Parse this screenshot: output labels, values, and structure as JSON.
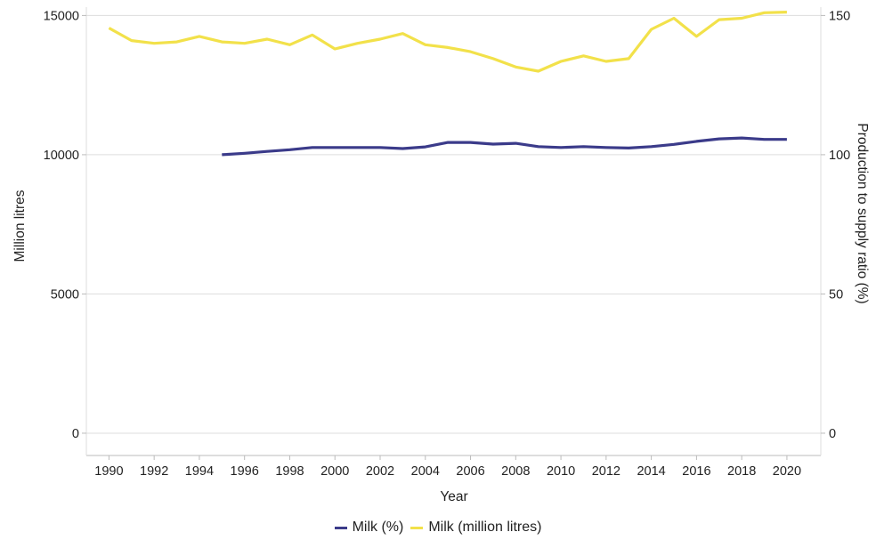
{
  "chart_data": {
    "type": "line",
    "xlabel": "Year",
    "ylabel_left": "Million litres",
    "ylabel_right": "Production to supply ratio (%)",
    "x_ticks": [
      "1990",
      "1992",
      "1994",
      "1996",
      "1998",
      "2000",
      "2002",
      "2004",
      "2006",
      "2008",
      "2010",
      "2012",
      "2014",
      "2016",
      "2018",
      "2020"
    ],
    "xlim": [
      1989,
      2021.5
    ],
    "ylim_left": [
      -800,
      15300
    ],
    "ylim_right": [
      -8,
      153
    ],
    "yticks_left": [
      "0",
      "5000",
      "10000",
      "15000"
    ],
    "yticks_right": [
      "0",
      "50",
      "100",
      "150"
    ],
    "grid": "horizontal",
    "legend_placement": "bottom",
    "series": [
      {
        "name": "Milk (%)",
        "axis": "right",
        "color": "#3b3b8a",
        "x": [
          1995,
          1996,
          1997,
          1998,
          1999,
          2000,
          2001,
          2002,
          2003,
          2004,
          2005,
          2006,
          2007,
          2008,
          2009,
          2010,
          2011,
          2012,
          2013,
          2014,
          2015,
          2016,
          2017,
          2018,
          2019,
          2020
        ],
        "values": [
          100,
          100.5,
          101.2,
          101.8,
          102.6,
          102.6,
          102.6,
          102.6,
          102.2,
          102.8,
          104.4,
          104.4,
          103.8,
          104.1,
          102.9,
          102.6,
          102.9,
          102.6,
          102.4,
          102.9,
          103.7,
          104.8,
          105.7,
          106.0,
          105.5,
          105.5
        ]
      },
      {
        "name": "Milk (million litres)",
        "axis": "left",
        "color": "#f2e14a",
        "x": [
          1990,
          1991,
          1992,
          1993,
          1994,
          1995,
          1996,
          1997,
          1998,
          1999,
          2000,
          2001,
          2002,
          2003,
          2004,
          2005,
          2006,
          2007,
          2008,
          2009,
          2010,
          2011,
          2012,
          2013,
          2014,
          2015,
          2016,
          2017,
          2018,
          2019,
          2020
        ],
        "values": [
          14550,
          14100,
          14000,
          14050,
          14250,
          14050,
          14000,
          14150,
          13950,
          14300,
          13800,
          14000,
          14150,
          14350,
          13950,
          13850,
          13700,
          13450,
          13150,
          13000,
          13350,
          13550,
          13350,
          13450,
          14500,
          14900,
          14250,
          14850,
          14900,
          15100,
          15120
        ]
      }
    ]
  }
}
